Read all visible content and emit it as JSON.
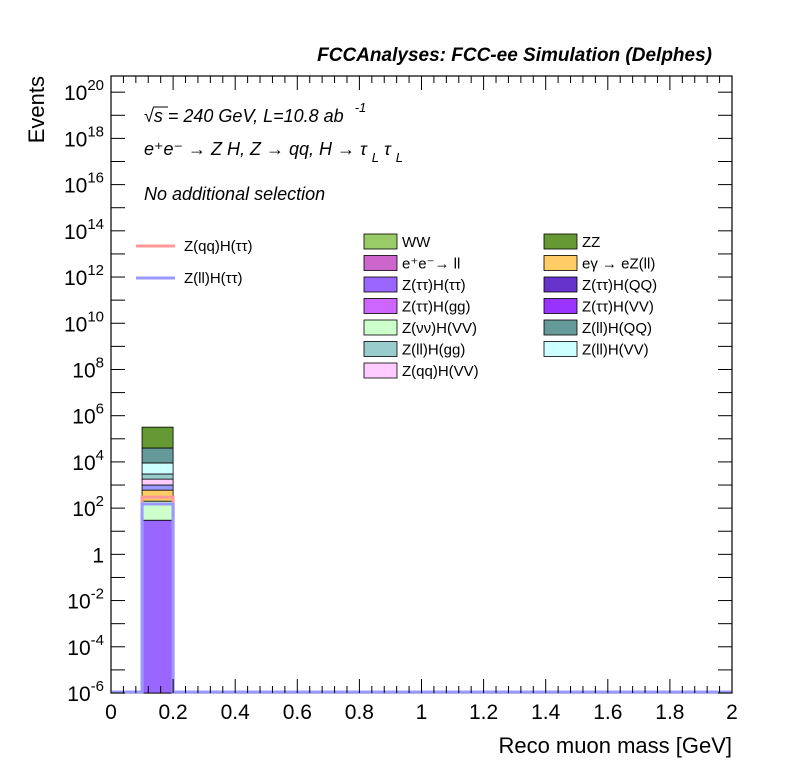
{
  "chart_data": {
    "type": "bar",
    "title": "FCCAnalyses: FCC-ee Simulation (Delphes)",
    "xlabel": "Reco muon mass [GeV]",
    "ylabel": "Events",
    "xlim": [
      0,
      2
    ],
    "ylim_log10": [
      -6,
      20.7
    ],
    "log_y": true,
    "annotations": {
      "sqrt_s": "√s = 240 GeV, L=10.8 ab",
      "lumi_exp": "-1",
      "process": "e⁺e⁻ → Z H, Z → qq, H → τ",
      "sub_L1": "L",
      "tau2": "τ",
      "sub_L2": "L",
      "selection": "No additional selection"
    },
    "x_ticks": [
      {
        "v": 0,
        "label": "0"
      },
      {
        "v": 0.2,
        "label": "0.2"
      },
      {
        "v": 0.4,
        "label": "0.4"
      },
      {
        "v": 0.6,
        "label": "0.6"
      },
      {
        "v": 0.8,
        "label": "0.8"
      },
      {
        "v": 1.0,
        "label": "1"
      },
      {
        "v": 1.2,
        "label": "1.2"
      },
      {
        "v": 1.4,
        "label": "1.4"
      },
      {
        "v": 1.6,
        "label": "1.6"
      },
      {
        "v": 1.8,
        "label": "1.8"
      },
      {
        "v": 2.0,
        "label": "2"
      }
    ],
    "y_ticks": [
      {
        "e": -6,
        "base": "10",
        "exp": "-6"
      },
      {
        "e": -4,
        "base": "10",
        "exp": "-4"
      },
      {
        "e": -2,
        "base": "10",
        "exp": "-2"
      },
      {
        "e": 0,
        "base": "1",
        "exp": ""
      },
      {
        "e": 2,
        "base": "10",
        "exp": "2"
      },
      {
        "e": 4,
        "base": "10",
        "exp": "4"
      },
      {
        "e": 6,
        "base": "10",
        "exp": "6"
      },
      {
        "e": 8,
        "base": "10",
        "exp": "8"
      },
      {
        "e": 10,
        "base": "10",
        "exp": "10"
      },
      {
        "e": 12,
        "base": "10",
        "exp": "12"
      },
      {
        "e": 14,
        "base": "10",
        "exp": "14"
      },
      {
        "e": 16,
        "base": "10",
        "exp": "16"
      },
      {
        "e": 18,
        "base": "10",
        "exp": "18"
      },
      {
        "e": 20,
        "base": "10",
        "exp": "20"
      }
    ],
    "bin": [
      0.1,
      0.2
    ],
    "stack": [
      {
        "name": "Z(ττ)H(ττ)",
        "color": "#9966ff",
        "top": 30
      },
      {
        "name": "Z(νν)H(VV)",
        "color": "#ccffcc",
        "top": 200
      },
      {
        "name": "eγ → eZ(ll)",
        "color": "#ffcc66",
        "top": 600
      },
      {
        "name": "Z(ll)H(ττ)",
        "color": "#9999ff",
        "top": 1000
      },
      {
        "name": "Z(qq)H(VV)",
        "color": "#ffccff",
        "top": 1800
      },
      {
        "name": "Z(ll)H(gg)",
        "color": "#99cccc",
        "top": 3000
      },
      {
        "name": "Z(ll)H(VV)",
        "color": "#ccffff",
        "top": 9000
      },
      {
        "name": "Z(ll)H(QQ)",
        "color": "#669999",
        "top": 40000
      },
      {
        "name": "ZZ",
        "color": "#669933",
        "top": 320000
      }
    ],
    "signals": [
      {
        "name": "Z(qq)H(ττ)",
        "color": "#ff9999",
        "y": 300
      },
      {
        "name": "Z(ll)H(ττ)",
        "color": "#9999ff",
        "y": 150
      }
    ],
    "legend_signals": [
      {
        "name": "Z(qq)H(ττ)",
        "color": "#ff9999"
      },
      {
        "name": "Z(ll)H(ττ)",
        "color": "#9999ff"
      }
    ],
    "legend_bkg": [
      {
        "name": "WW",
        "color": "#99cc66"
      },
      {
        "name": "ZZ",
        "color": "#669933"
      },
      {
        "name": "e⁺e⁻→ ll",
        "color": "#cc66cc"
      },
      {
        "name": "eγ → eZ(ll)",
        "color": "#ffcc66"
      },
      {
        "name": "Z(ττ)H(ττ)",
        "color": "#9966ff"
      },
      {
        "name": "Z(ττ)H(QQ)",
        "color": "#6633cc"
      },
      {
        "name": "Z(ττ)H(gg)",
        "color": "#cc66ff"
      },
      {
        "name": "Z(ττ)H(VV)",
        "color": "#9933ff"
      },
      {
        "name": "Z(νν)H(VV)",
        "color": "#ccffcc"
      },
      {
        "name": "Z(ll)H(QQ)",
        "color": "#669999"
      },
      {
        "name": "Z(ll)H(gg)",
        "color": "#99cccc"
      },
      {
        "name": "Z(ll)H(VV)",
        "color": "#ccffff"
      },
      {
        "name": "Z(qq)H(VV)",
        "color": "#ffccff"
      }
    ]
  }
}
